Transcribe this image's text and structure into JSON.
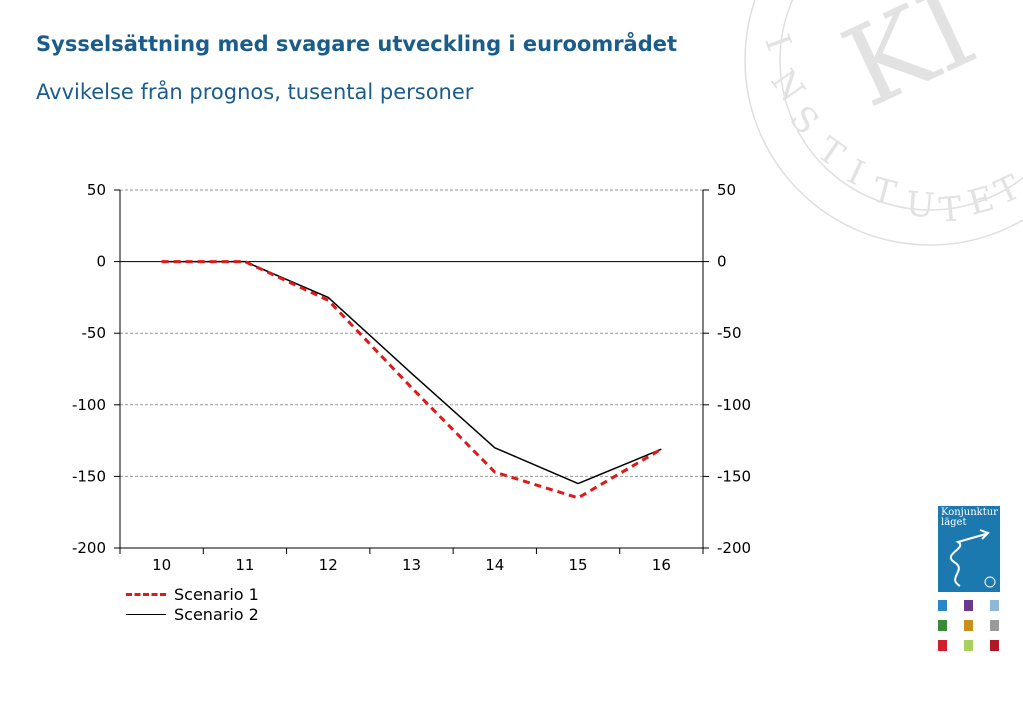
{
  "header": {
    "title": "Sysselsättning med svagare utveckling i euroområdet",
    "subtitle": "Avvikelse från prognos, tusental personer"
  },
  "branding": {
    "seal_text": "INSTITUTET",
    "seal_monogram": "KI",
    "cover_title": "Konjunktur läget",
    "accent_color": "#1a5c8a",
    "cover_color": "#1c79b0",
    "thumbnail_colors": [
      "#2a86c8",
      "#6b3a8c",
      "#8fb8d8",
      "#3a8a3a",
      "#c8901a",
      "#9a9a9a",
      "#d02030",
      "#a8d060",
      "#b01828"
    ]
  },
  "chart_data": {
    "type": "line",
    "categories": [
      "10",
      "11",
      "12",
      "13",
      "14",
      "15",
      "16"
    ],
    "ylim": [
      -200,
      50
    ],
    "yticks": [
      50,
      0,
      -50,
      -100,
      -150,
      -200
    ],
    "ytick_labels": [
      "50",
      "0",
      "-50",
      "-100",
      "-150",
      "-200"
    ],
    "grid": true,
    "legend_position": "bottom-left",
    "series": [
      {
        "name": "Scenario 1",
        "values": [
          0,
          0,
          -27,
          -88,
          -147,
          -165,
          -131
        ],
        "color": "#e01818",
        "style": "dashed"
      },
      {
        "name": "Scenario 2",
        "values": [
          0,
          0,
          -25,
          -78,
          -130,
          -155,
          -131
        ],
        "color": "#000000",
        "style": "solid"
      }
    ]
  }
}
